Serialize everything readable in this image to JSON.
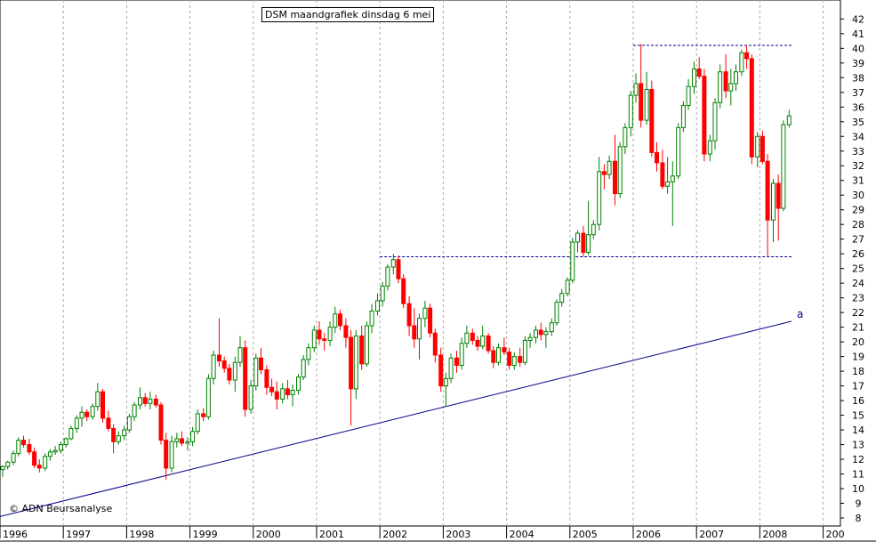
{
  "chart_data": {
    "type": "candlestick",
    "title": "DSM maandgrafiek dinsdag 6 mei",
    "copyright": "© ADN Beursanalyse",
    "x_ticks": [
      "1996",
      "1997",
      "1998",
      "1999",
      "2000",
      "2001",
      "2002",
      "2003",
      "2004",
      "2005",
      "2006",
      "2007",
      "2008",
      "200"
    ],
    "y_ticks": [
      8,
      9,
      10,
      11,
      12,
      13,
      14,
      15,
      16,
      17,
      18,
      19,
      20,
      21,
      22,
      23,
      24,
      25,
      26,
      27,
      28,
      29,
      30,
      31,
      32,
      33,
      34,
      35,
      36,
      37,
      38,
      39,
      40,
      41,
      42
    ],
    "ylim": [
      7.5,
      42.9
    ],
    "xlim": [
      1996.0,
      2009.0
    ],
    "grid": true,
    "colors": {
      "up": "#008000",
      "down": "#ff0000",
      "trendline": "#00008b",
      "resistance": "#00008b",
      "grid": "#aaaaaa"
    },
    "trendline": {
      "label": "a",
      "from": [
        1996.0,
        8.1
      ],
      "to": [
        2008.5,
        21.4
      ]
    },
    "resistance_lines": [
      {
        "y": 40.2,
        "x_from": 2006.0,
        "x_to": 2008.5
      },
      {
        "y": 25.8,
        "x_from": 2002.0,
        "x_to": 2008.5
      }
    ],
    "candles": [
      [
        1996.0,
        11.3,
        11.6,
        10.8,
        11.5
      ],
      [
        1996.08,
        11.5,
        11.9,
        11.3,
        11.8
      ],
      [
        1996.17,
        11.8,
        12.6,
        11.6,
        12.4
      ],
      [
        1996.25,
        12.4,
        13.5,
        12.2,
        13.3
      ],
      [
        1996.33,
        13.3,
        13.6,
        12.8,
        13.0
      ],
      [
        1996.42,
        13.0,
        13.4,
        12.3,
        12.5
      ],
      [
        1996.5,
        12.5,
        12.8,
        11.4,
        11.6
      ],
      [
        1996.58,
        11.6,
        12.0,
        11.1,
        11.4
      ],
      [
        1996.67,
        11.4,
        12.4,
        11.2,
        12.2
      ],
      [
        1996.75,
        12.2,
        12.7,
        11.9,
        12.5
      ],
      [
        1996.83,
        12.5,
        12.9,
        12.3,
        12.6
      ],
      [
        1996.92,
        12.6,
        13.2,
        12.4,
        13.0
      ],
      [
        1997.0,
        13.0,
        13.5,
        12.8,
        13.4
      ],
      [
        1997.08,
        13.4,
        14.3,
        13.3,
        14.1
      ],
      [
        1997.17,
        14.1,
        15.0,
        13.8,
        14.8
      ],
      [
        1997.25,
        14.8,
        15.6,
        14.2,
        15.2
      ],
      [
        1997.33,
        15.2,
        15.4,
        14.6,
        14.9
      ],
      [
        1997.42,
        14.9,
        15.8,
        14.7,
        15.6
      ],
      [
        1997.5,
        15.6,
        17.2,
        15.3,
        16.6
      ],
      [
        1997.58,
        16.6,
        16.8,
        14.5,
        14.8
      ],
      [
        1997.67,
        14.8,
        15.3,
        13.9,
        14.1
      ],
      [
        1997.75,
        14.1,
        14.4,
        12.4,
        13.2
      ],
      [
        1997.83,
        13.2,
        13.9,
        13.0,
        13.6
      ],
      [
        1997.92,
        13.6,
        14.3,
        13.3,
        14.0
      ],
      [
        1998.0,
        14.0,
        15.1,
        13.8,
        14.9
      ],
      [
        1998.08,
        14.9,
        15.9,
        14.6,
        15.7
      ],
      [
        1998.17,
        15.7,
        16.9,
        15.4,
        16.2
      ],
      [
        1998.25,
        16.2,
        16.5,
        15.6,
        15.8
      ],
      [
        1998.33,
        15.8,
        16.6,
        15.4,
        16.1
      ],
      [
        1998.42,
        16.1,
        16.4,
        15.5,
        15.7
      ],
      [
        1998.5,
        15.7,
        15.9,
        13.0,
        13.3
      ],
      [
        1998.58,
        13.3,
        13.8,
        10.6,
        11.4
      ],
      [
        1998.67,
        11.4,
        13.6,
        11.1,
        13.2
      ],
      [
        1998.75,
        13.2,
        13.8,
        12.8,
        13.4
      ],
      [
        1998.83,
        13.4,
        13.9,
        12.9,
        13.1
      ],
      [
        1998.92,
        13.1,
        13.5,
        12.6,
        13.2
      ],
      [
        1999.0,
        13.2,
        14.2,
        12.9,
        13.9
      ],
      [
        1999.08,
        13.9,
        15.4,
        13.7,
        15.1
      ],
      [
        1999.17,
        15.1,
        15.5,
        14.6,
        14.9
      ],
      [
        1999.25,
        14.9,
        17.8,
        14.7,
        17.5
      ],
      [
        1999.33,
        17.5,
        19.4,
        17.1,
        19.1
      ],
      [
        1999.42,
        19.1,
        21.6,
        18.3,
        18.7
      ],
      [
        1999.5,
        18.7,
        19.0,
        17.9,
        18.2
      ],
      [
        1999.58,
        18.2,
        18.5,
        17.1,
        17.4
      ],
      [
        1999.67,
        17.4,
        19.0,
        16.6,
        18.6
      ],
      [
        1999.75,
        18.6,
        20.4,
        18.3,
        19.6
      ],
      [
        1999.83,
        19.6,
        20.1,
        14.9,
        15.4
      ],
      [
        1999.92,
        15.4,
        17.4,
        15.1,
        17.0
      ],
      [
        2000.0,
        17.0,
        19.2,
        16.7,
        18.9
      ],
      [
        2000.08,
        18.9,
        19.6,
        17.8,
        18.1
      ],
      [
        2000.17,
        18.1,
        18.4,
        16.4,
        16.9
      ],
      [
        2000.25,
        16.9,
        17.5,
        16.3,
        16.6
      ],
      [
        2000.33,
        16.6,
        17.3,
        15.4,
        16.1
      ],
      [
        2000.42,
        16.1,
        17.2,
        15.8,
        16.8
      ],
      [
        2000.5,
        16.8,
        17.4,
        16.1,
        16.4
      ],
      [
        2000.58,
        16.4,
        17.1,
        15.6,
        16.7
      ],
      [
        2000.67,
        16.7,
        17.8,
        16.4,
        17.6
      ],
      [
        2000.75,
        17.6,
        19.1,
        17.4,
        18.8
      ],
      [
        2000.83,
        18.8,
        19.9,
        18.4,
        19.6
      ],
      [
        2000.92,
        19.6,
        21.1,
        19.3,
        20.8
      ],
      [
        2001.0,
        20.8,
        21.4,
        19.8,
        20.2
      ],
      [
        2001.08,
        20.2,
        20.6,
        19.4,
        20.1
      ],
      [
        2001.17,
        20.1,
        21.4,
        19.7,
        21.0
      ],
      [
        2001.25,
        21.0,
        22.4,
        20.6,
        21.9
      ],
      [
        2001.33,
        21.9,
        22.2,
        20.8,
        21.1
      ],
      [
        2001.42,
        21.1,
        21.6,
        19.6,
        20.3
      ],
      [
        2001.5,
        20.3,
        20.8,
        14.3,
        16.8
      ],
      [
        2001.58,
        16.8,
        20.8,
        16.1,
        20.4
      ],
      [
        2001.67,
        20.4,
        21.1,
        18.1,
        18.5
      ],
      [
        2001.75,
        18.5,
        21.4,
        18.3,
        21.1
      ],
      [
        2001.83,
        21.1,
        22.6,
        20.6,
        22.1
      ],
      [
        2001.92,
        22.1,
        23.3,
        21.8,
        22.8
      ],
      [
        2002.0,
        22.8,
        24.1,
        22.4,
        23.8
      ],
      [
        2002.08,
        23.8,
        25.3,
        23.5,
        25.1
      ],
      [
        2002.17,
        25.1,
        26.0,
        24.6,
        25.6
      ],
      [
        2002.25,
        25.6,
        25.9,
        24.0,
        24.3
      ],
      [
        2002.33,
        24.3,
        24.6,
        22.3,
        22.6
      ],
      [
        2002.42,
        22.6,
        23.1,
        20.4,
        21.1
      ],
      [
        2002.5,
        21.1,
        22.3,
        19.6,
        20.2
      ],
      [
        2002.58,
        20.2,
        21.9,
        18.8,
        21.6
      ],
      [
        2002.67,
        21.6,
        22.8,
        21.0,
        22.3
      ],
      [
        2002.75,
        22.3,
        22.6,
        20.3,
        20.6
      ],
      [
        2002.83,
        20.6,
        20.9,
        18.6,
        19.1
      ],
      [
        2002.92,
        19.1,
        19.6,
        16.6,
        17.0
      ],
      [
        2003.0,
        17.0,
        17.9,
        15.6,
        17.5
      ],
      [
        2003.08,
        17.5,
        19.2,
        17.2,
        18.9
      ],
      [
        2003.17,
        18.9,
        19.4,
        17.9,
        18.4
      ],
      [
        2003.25,
        18.4,
        20.3,
        18.1,
        19.9
      ],
      [
        2003.33,
        19.9,
        21.1,
        19.6,
        20.6
      ],
      [
        2003.42,
        20.6,
        20.9,
        19.8,
        20.1
      ],
      [
        2003.5,
        20.1,
        20.4,
        19.4,
        19.7
      ],
      [
        2003.58,
        19.7,
        21.1,
        19.5,
        20.4
      ],
      [
        2003.67,
        20.4,
        20.6,
        19.2,
        19.4
      ],
      [
        2003.75,
        19.4,
        19.7,
        18.2,
        18.6
      ],
      [
        2003.83,
        18.6,
        19.9,
        18.4,
        19.6
      ],
      [
        2003.92,
        19.6,
        20.3,
        19.1,
        19.3
      ],
      [
        2004.0,
        19.3,
        19.6,
        18.1,
        18.4
      ],
      [
        2004.08,
        18.4,
        19.3,
        18.1,
        19.0
      ],
      [
        2004.17,
        19.0,
        19.6,
        18.3,
        18.6
      ],
      [
        2004.25,
        18.6,
        20.4,
        18.4,
        20.1
      ],
      [
        2004.33,
        20.1,
        20.6,
        19.6,
        20.3
      ],
      [
        2004.42,
        20.3,
        21.1,
        19.9,
        20.8
      ],
      [
        2004.5,
        20.8,
        21.3,
        20.1,
        20.5
      ],
      [
        2004.58,
        20.5,
        21.0,
        19.6,
        20.7
      ],
      [
        2004.67,
        20.7,
        21.6,
        20.4,
        21.3
      ],
      [
        2004.75,
        21.3,
        22.9,
        21.1,
        22.7
      ],
      [
        2004.83,
        22.7,
        23.6,
        22.4,
        23.3
      ],
      [
        2004.92,
        23.3,
        24.4,
        23.1,
        24.2
      ],
      [
        2005.0,
        24.2,
        27.1,
        24.0,
        26.8
      ],
      [
        2005.08,
        26.8,
        27.6,
        26.1,
        27.4
      ],
      [
        2005.17,
        27.4,
        27.9,
        25.8,
        26.1
      ],
      [
        2005.25,
        26.1,
        29.6,
        25.9,
        27.3
      ],
      [
        2005.33,
        27.3,
        28.3,
        27.0,
        28.0
      ],
      [
        2005.42,
        28.0,
        32.6,
        27.6,
        31.6
      ],
      [
        2005.5,
        31.6,
        32.1,
        30.4,
        31.4
      ],
      [
        2005.58,
        31.4,
        32.7,
        31.1,
        32.3
      ],
      [
        2005.67,
        32.3,
        34.1,
        29.3,
        30.1
      ],
      [
        2005.75,
        30.1,
        33.6,
        29.8,
        33.3
      ],
      [
        2005.83,
        33.3,
        34.9,
        32.8,
        34.6
      ],
      [
        2005.92,
        34.6,
        37.1,
        34.0,
        36.8
      ],
      [
        2006.0,
        36.8,
        38.3,
        36.3,
        37.6
      ],
      [
        2006.08,
        37.6,
        40.3,
        34.6,
        35.1
      ],
      [
        2006.17,
        35.1,
        38.4,
        34.8,
        37.2
      ],
      [
        2006.25,
        37.2,
        37.8,
        32.6,
        32.9
      ],
      [
        2006.33,
        32.9,
        33.6,
        31.6,
        32.2
      ],
      [
        2006.42,
        32.2,
        33.1,
        30.4,
        30.6
      ],
      [
        2006.5,
        30.6,
        32.6,
        30.1,
        30.9
      ],
      [
        2006.58,
        30.9,
        32.3,
        27.9,
        31.3
      ],
      [
        2006.67,
        31.3,
        34.9,
        31.1,
        34.6
      ],
      [
        2006.75,
        34.6,
        36.4,
        34.3,
        36.1
      ],
      [
        2006.83,
        36.1,
        37.9,
        35.8,
        37.4
      ],
      [
        2006.92,
        37.4,
        39.1,
        36.9,
        38.6
      ],
      [
        2007.0,
        38.6,
        39.4,
        37.9,
        38.1
      ],
      [
        2007.08,
        38.1,
        38.6,
        32.3,
        32.8
      ],
      [
        2007.17,
        32.8,
        34.1,
        32.3,
        33.7
      ],
      [
        2007.25,
        33.7,
        36.6,
        33.1,
        36.3
      ],
      [
        2007.33,
        36.3,
        38.9,
        35.9,
        38.4
      ],
      [
        2007.42,
        38.4,
        39.6,
        36.6,
        37.1
      ],
      [
        2007.5,
        37.1,
        38.6,
        36.1,
        37.6
      ],
      [
        2007.58,
        37.6,
        38.9,
        37.1,
        38.4
      ],
      [
        2007.67,
        38.4,
        39.9,
        38.1,
        39.7
      ],
      [
        2007.75,
        39.7,
        40.2,
        38.6,
        39.3
      ],
      [
        2007.83,
        39.3,
        39.6,
        32.1,
        32.6
      ],
      [
        2007.92,
        32.6,
        34.3,
        31.9,
        34.0
      ],
      [
        2008.0,
        34.0,
        34.4,
        32.1,
        32.3
      ],
      [
        2008.08,
        32.3,
        32.8,
        25.8,
        28.3
      ],
      [
        2008.17,
        28.3,
        31.1,
        26.8,
        30.8
      ],
      [
        2008.25,
        30.8,
        31.4,
        26.9,
        29.1
      ],
      [
        2008.33,
        29.1,
        35.1,
        28.9,
        34.8
      ],
      [
        2008.42,
        34.8,
        35.8,
        34.6,
        35.4
      ]
    ]
  }
}
